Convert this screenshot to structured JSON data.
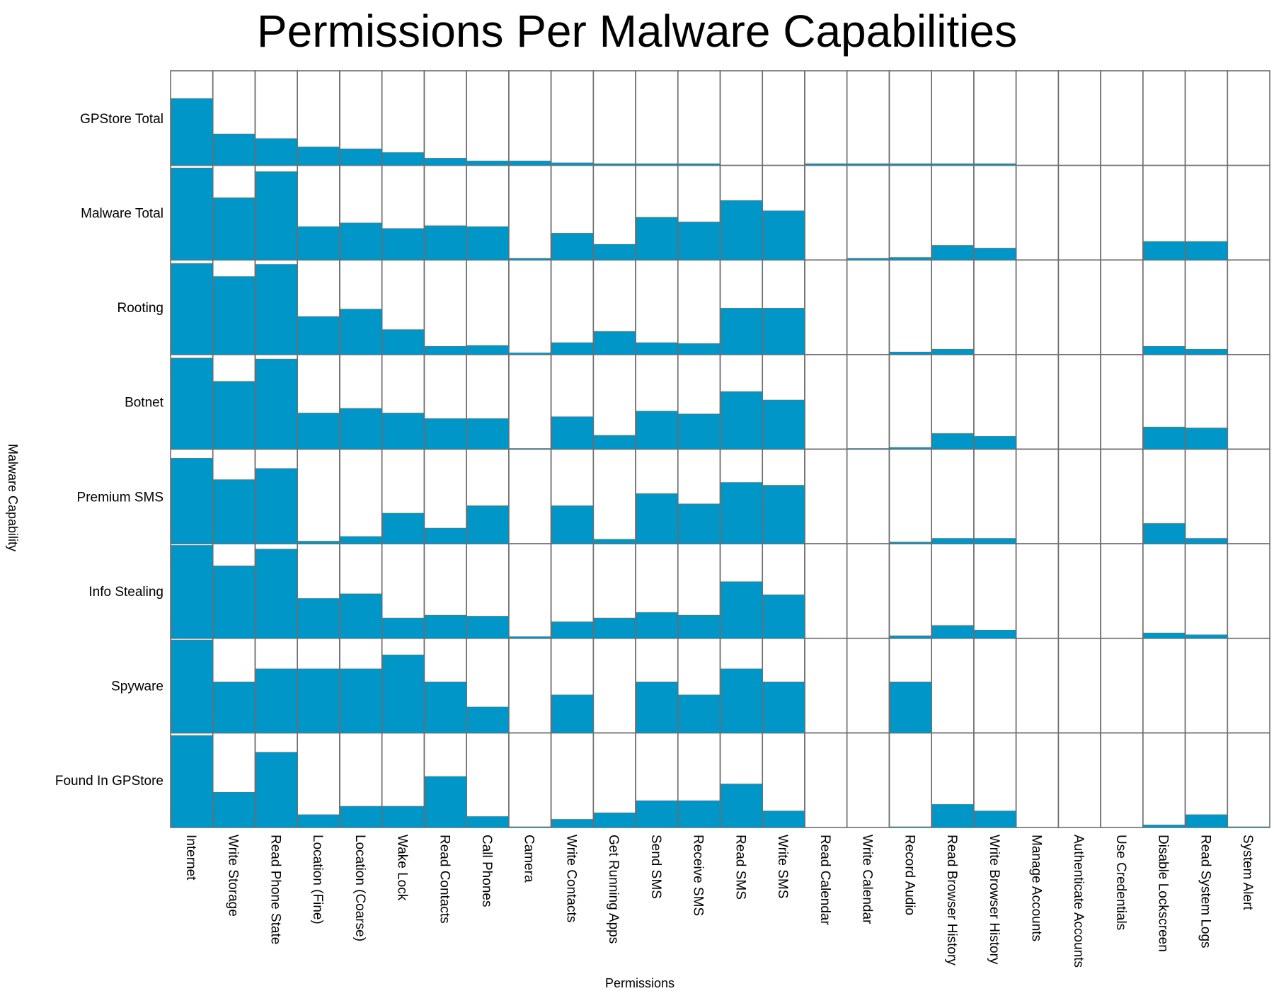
{
  "chart_data": {
    "type": "heatmap",
    "title": "Permissions Per Malware Capabilities",
    "xlabel": "Permissions",
    "ylabel": "Malware Capability",
    "bar_color": "#0096c8",
    "border_color": "#6e6e6e",
    "value_range": [
      0,
      1
    ],
    "rows": [
      "GPStore Total",
      "Malware Total",
      "Rooting",
      "Botnet",
      "Premium SMS",
      "Info Stealing",
      "Spyware",
      "Found In GPStore"
    ],
    "columns": [
      "Internet",
      "Write Storage",
      "Read Phone State",
      "Location (Fine)",
      "Location (Coarse)",
      "Wake Lock",
      "Read Contacts",
      "Call Phones",
      "Camera",
      "Write Contacts",
      "Get Running Apps",
      "Send SMS",
      "Receive SMS",
      "Read SMS",
      "Write SMS",
      "Read Calendar",
      "Write Calendar",
      "Record Audio",
      "Read Browser History",
      "Write Browser History",
      "Manage Accounts",
      "Authenticate Accounts",
      "Use Credentials",
      "Disable Lockscreen",
      "Read System Logs",
      "System Alert"
    ],
    "values": [
      [
        0.72,
        0.34,
        0.29,
        0.2,
        0.18,
        0.14,
        0.08,
        0.05,
        0.05,
        0.03,
        0.02,
        0.02,
        0.02,
        0.0,
        0.0,
        0.02,
        0.02,
        0.02,
        0.02,
        0.02,
        0.0,
        0.0,
        0.0,
        0.0,
        0.0,
        0.0
      ],
      [
        0.99,
        0.67,
        0.95,
        0.36,
        0.4,
        0.34,
        0.37,
        0.36,
        0.02,
        0.29,
        0.17,
        0.46,
        0.41,
        0.64,
        0.53,
        0.0,
        0.02,
        0.03,
        0.16,
        0.13,
        0.0,
        0.0,
        0.0,
        0.2,
        0.2,
        0.0
      ],
      [
        0.98,
        0.84,
        0.97,
        0.41,
        0.49,
        0.27,
        0.09,
        0.1,
        0.02,
        0.13,
        0.25,
        0.13,
        0.12,
        0.5,
        0.5,
        0.0,
        0.0,
        0.03,
        0.06,
        0.0,
        0.0,
        0.0,
        0.0,
        0.09,
        0.06,
        0.0
      ],
      [
        0.98,
        0.73,
        0.97,
        0.39,
        0.44,
        0.39,
        0.33,
        0.33,
        0.01,
        0.35,
        0.15,
        0.41,
        0.38,
        0.62,
        0.53,
        0.0,
        0.01,
        0.02,
        0.17,
        0.14,
        0.0,
        0.0,
        0.0,
        0.24,
        0.23,
        0.0
      ],
      [
        0.92,
        0.69,
        0.81,
        0.03,
        0.08,
        0.33,
        0.17,
        0.41,
        0.0,
        0.41,
        0.05,
        0.54,
        0.43,
        0.66,
        0.63,
        0.0,
        0.0,
        0.02,
        0.06,
        0.06,
        0.0,
        0.0,
        0.0,
        0.22,
        0.06,
        0.0
      ],
      [
        1.0,
        0.78,
        0.96,
        0.43,
        0.48,
        0.22,
        0.25,
        0.24,
        0.02,
        0.18,
        0.22,
        0.28,
        0.25,
        0.61,
        0.47,
        0.0,
        0.0,
        0.03,
        0.14,
        0.09,
        0.0,
        0.0,
        0.0,
        0.06,
        0.04,
        0.0
      ],
      [
        1.0,
        0.55,
        0.69,
        0.69,
        0.69,
        0.84,
        0.55,
        0.28,
        0.0,
        0.41,
        0.0,
        0.55,
        0.41,
        0.69,
        0.55,
        0.0,
        0.0,
        0.55,
        0.0,
        0.0,
        0.0,
        0.0,
        0.0,
        0.0,
        0.0,
        0.0
      ],
      [
        0.99,
        0.38,
        0.81,
        0.14,
        0.23,
        0.23,
        0.55,
        0.12,
        0.01,
        0.09,
        0.16,
        0.29,
        0.29,
        0.47,
        0.18,
        0.0,
        0.0,
        0.01,
        0.25,
        0.18,
        0.0,
        0.0,
        0.0,
        0.03,
        0.14,
        0.01
      ]
    ],
    "grid": true
  }
}
